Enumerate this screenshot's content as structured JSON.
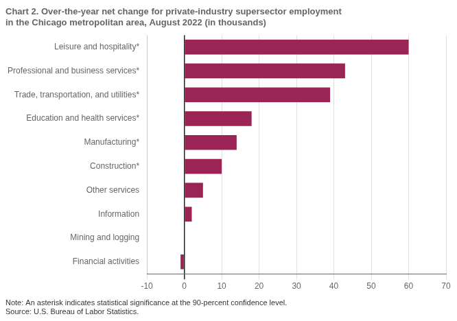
{
  "chart_data": {
    "type": "bar",
    "orientation": "horizontal",
    "title": [
      "Chart 2. Over-the-year net change for private-industry supersector employment",
      "in the Chicago metropolitan area, August 2022 (in thousands)"
    ],
    "annotations": [
      "Note: An asterisk indicates statistical significance at the 90-percent confidence level.",
      "Source: U.S. Bureau of Labor Statistics."
    ],
    "categories": [
      "Financial activities",
      "Mining and logging",
      "Information",
      "Other services",
      "Construction*",
      "Manufacturing*",
      "Education and health services*",
      "Trade, transportation, and utilities*",
      "Professional and business services*",
      "Leisure and hospitality*"
    ],
    "values": [
      -1.0,
      0.0,
      2.0,
      5.0,
      10.0,
      14.0,
      18.0,
      39.0,
      43.0,
      60.0
    ],
    "color": "#9b2457",
    "xlim": [
      -10,
      70
    ],
    "xticks": [
      -10,
      0,
      10,
      20,
      30,
      40,
      50,
      60,
      70
    ],
    "grid": true
  }
}
